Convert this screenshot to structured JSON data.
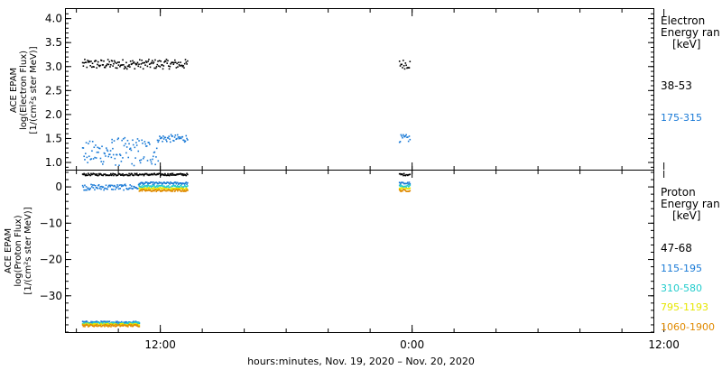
{
  "chart_data": [
    {
      "type": "scatter",
      "panel": "electron",
      "ylabel": [
        "ACE EPAM",
        "log(Electron Flux)",
        "[1/(cm²s ster MeV)]"
      ],
      "ylim": [
        0.85,
        4.2
      ],
      "yticks": [
        "1.0",
        "1.5",
        "2.0",
        "2.5",
        "3.0",
        "3.5",
        "4.0"
      ],
      "ytick_values": [
        1.0,
        1.5,
        2.0,
        2.5,
        3.0,
        3.5,
        4.0
      ],
      "legend_title": [
        "Electron",
        "Energy ran",
        "[keV]"
      ],
      "series": [
        {
          "name": "38-53",
          "color": "#000000",
          "segments": [
            {
              "x_start": -3.7,
              "x_end": 1.3,
              "y_mean": 3.05,
              "y_spread": 0.1
            },
            {
              "x_start": 11.4,
              "x_end": 11.9,
              "y_mean": 3.05,
              "y_spread": 0.1
            }
          ]
        },
        {
          "name": "175-315",
          "color": "#1a7ad6",
          "segments": [
            {
              "x_start": -3.7,
              "x_end": -2.3,
              "y_mean": 1.2,
              "y_spread": 0.25
            },
            {
              "x_start": -2.3,
              "x_end": -0.1,
              "y_mean": 1.22,
              "y_spread": 0.3
            },
            {
              "x_start": -0.1,
              "x_end": 1.3,
              "y_mean": 1.5,
              "y_spread": 0.08
            },
            {
              "x_start": 11.4,
              "x_end": 11.9,
              "y_mean": 1.5,
              "y_spread": 0.08
            }
          ]
        }
      ]
    },
    {
      "type": "scatter",
      "panel": "proton",
      "ylabel": [
        "ACE EPAM",
        "log(Proton Flux)",
        "[1/(cm²s ster MeV)]"
      ],
      "ylim": [
        -40,
        4.5
      ],
      "yticks": [
        "0",
        "−10",
        "−20",
        "−30"
      ],
      "ytick_values": [
        0,
        -10,
        -20,
        -30
      ],
      "legend_title": [
        "Proton",
        "Energy ran",
        "[keV]"
      ],
      "series": [
        {
          "name": "47-68",
          "color": "#000000",
          "segments": [
            {
              "x_start": -3.7,
              "x_end": 1.3,
              "y_mean": 3.4,
              "y_spread": 0.3
            },
            {
              "x_start": 11.4,
              "x_end": 11.9,
              "y_mean": 3.4,
              "y_spread": 0.3
            }
          ]
        },
        {
          "name": "115-195",
          "color": "#1a7ad6",
          "segments": [
            {
              "x_start": -3.7,
              "x_end": -1.0,
              "y_mean": -0.1,
              "y_spread": 0.8
            },
            {
              "x_start": -1.0,
              "x_end": 1.3,
              "y_mean": 1.0,
              "y_spread": 0.3
            },
            {
              "x_start": 11.4,
              "x_end": 11.9,
              "y_mean": 1.0,
              "y_spread": 0.3
            },
            {
              "x_start": -3.7,
              "x_end": -1.0,
              "y_mean": -37.3,
              "y_spread": 0.3
            }
          ]
        },
        {
          "name": "310-580",
          "color": "#22cccc",
          "segments": [
            {
              "x_start": -1.0,
              "x_end": 1.3,
              "y_mean": 0.2,
              "y_spread": 0.3
            },
            {
              "x_start": 11.4,
              "x_end": 11.9,
              "y_mean": 0.2,
              "y_spread": 0.3
            },
            {
              "x_start": -3.7,
              "x_end": -1.0,
              "y_mean": -37.6,
              "y_spread": 0.3
            }
          ]
        },
        {
          "name": "795-1193",
          "color": "#e6e600",
          "segments": [
            {
              "x_start": -1.0,
              "x_end": 1.3,
              "y_mean": -0.5,
              "y_spread": 0.3
            },
            {
              "x_start": 11.4,
              "x_end": 11.9,
              "y_mean": -0.5,
              "y_spread": 0.3
            },
            {
              "x_start": -3.7,
              "x_end": -1.0,
              "y_mean": -37.9,
              "y_spread": 0.3
            }
          ]
        },
        {
          "name": "1060-1900",
          "color": "#e08a00",
          "segments": [
            {
              "x_start": -1.0,
              "x_end": 1.3,
              "y_mean": -1.0,
              "y_spread": 0.3
            },
            {
              "x_start": 11.4,
              "x_end": 11.9,
              "y_mean": -1.0,
              "y_spread": 0.3
            },
            {
              "x_start": -3.7,
              "x_end": -1.0,
              "y_mean": -38.2,
              "y_spread": 0.3
            }
          ]
        }
      ]
    }
  ],
  "x_axis": {
    "xlim": [
      -4.5,
      23.5
    ],
    "unit": "hours relative to 2020-11-19 12:00",
    "ticks": [
      "12:00",
      "0:00",
      "12:00"
    ],
    "tick_values": [
      0,
      12,
      24
    ],
    "xlabel": "hours:minutes, Nov. 19, 2020 – Nov. 20, 2020"
  }
}
